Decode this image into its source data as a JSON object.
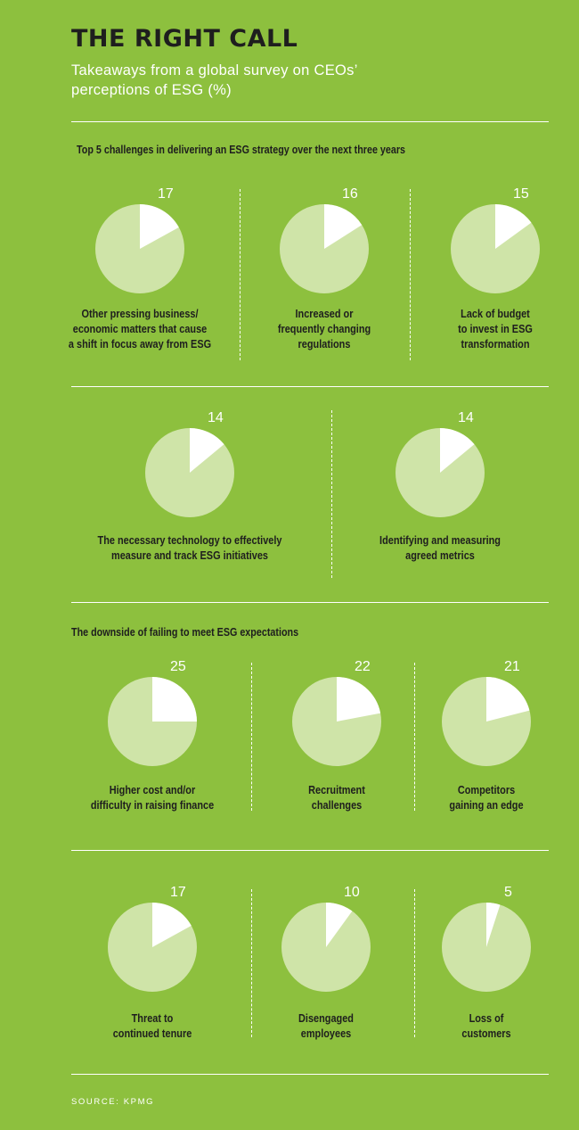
{
  "title": "THE RIGHT CALL",
  "subtitle": "Takeaways from a global survey on CEOs’ perceptions of ESG (%)",
  "source": "SOURCE: KPMG",
  "colors": {
    "background": "#8dc03e",
    "pie_base": "#cfe4a8",
    "pie_highlight": "#ffffff",
    "text_dark": "#1e1e1e"
  },
  "chart_data": [
    {
      "type": "pie",
      "title": "Top 5 challenges in delivering an ESG strategy over the next three years",
      "unit": "%",
      "categories": [
        "Other pressing business/\neconomic matters that cause\na shift in focus away from ESG",
        "Increased or\nfrequently changing\nregulations",
        "Lack of budget\nto invest in ESG\ntransformation",
        "The necessary technology to effectively\nmeasure and track ESG initiatives",
        "Identifying and measuring\nagreed metrics"
      ],
      "values": [
        17,
        16,
        15,
        14,
        14
      ]
    },
    {
      "type": "pie",
      "title": "The downside of failing to meet ESG expectations",
      "unit": "%",
      "categories": [
        "Higher cost and/or\ndifficulty in raising finance",
        "Recruitment\nchallenges",
        "Competitors\ngaining an edge",
        "Threat to\ncontinued tenure",
        "Disengaged\nemployees",
        "Loss of\ncustomers"
      ],
      "values": [
        25,
        22,
        21,
        17,
        10,
        5
      ]
    }
  ]
}
